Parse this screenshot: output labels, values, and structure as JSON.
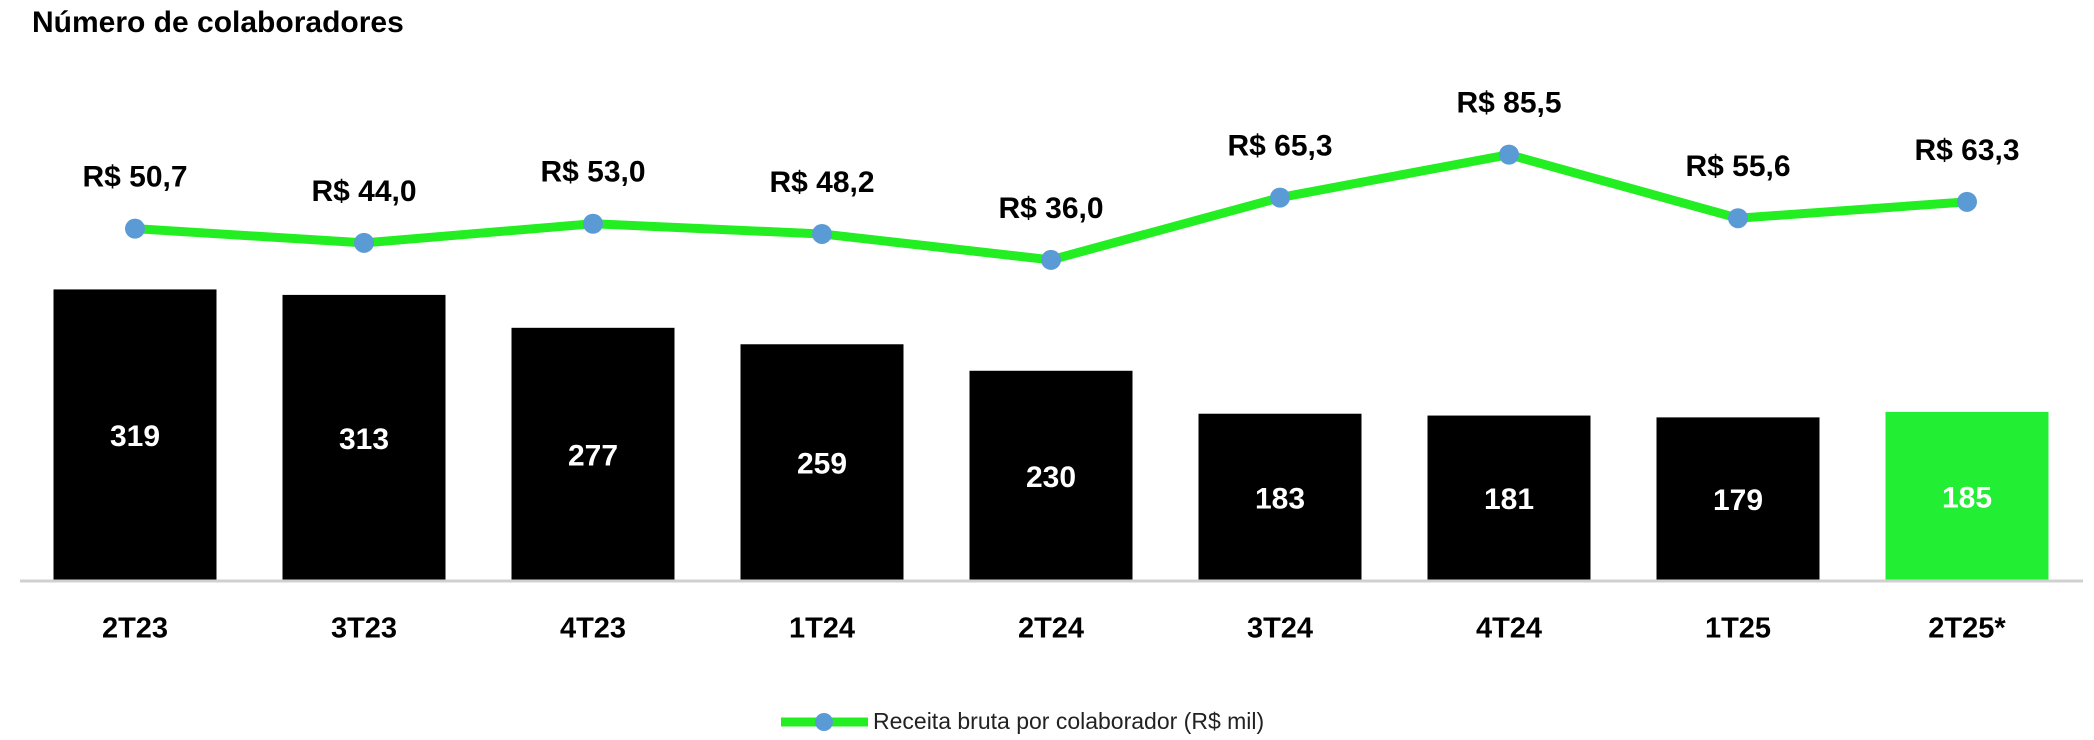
{
  "chart_data": {
    "type": "bar-line",
    "title": "Número de colaboradores",
    "categories": [
      "2T23",
      "3T23",
      "4T23",
      "1T24",
      "2T24",
      "3T24",
      "4T24",
      "1T25",
      "2T25*"
    ],
    "series": [
      {
        "type": "bar",
        "values": [
          319,
          313,
          277,
          259,
          230,
          183,
          181,
          179,
          185
        ],
        "colors": [
          "#000000",
          "#000000",
          "#000000",
          "#000000",
          "#000000",
          "#000000",
          "#000000",
          "#000000",
          "#22ee33"
        ]
      },
      {
        "type": "line",
        "axis": "y2",
        "name": "Receita bruta por colaborador (R$ mil)",
        "color": "#22ee22",
        "marker_color": "#5b9bd5",
        "values": [
          50.7,
          44.0,
          53.0,
          48.2,
          36.0,
          65.3,
          85.5,
          55.6,
          63.3
        ],
        "value_labels": [
          "R$ 50,7",
          "R$ 44,0",
          "R$ 53,0",
          "R$ 48,2",
          "R$ 36,0",
          "R$ 65,3",
          "R$ 85,5",
          "R$ 55,6",
          "R$ 63,3"
        ]
      }
    ],
    "ylim": [
      0,
      570
    ],
    "y2lim": [
      -115,
      130
    ]
  }
}
